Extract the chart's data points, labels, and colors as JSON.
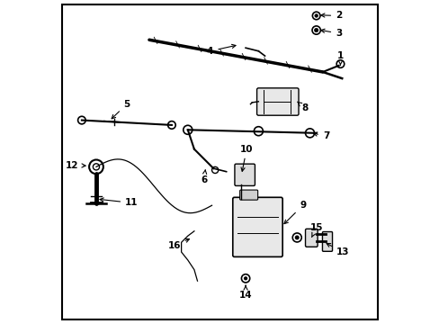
{
  "title": "",
  "background_color": "#ffffff",
  "border_color": "#000000",
  "label_color": "#000000",
  "line_color": "#000000",
  "figsize": [
    4.89,
    3.6
  ],
  "dpi": 100
}
